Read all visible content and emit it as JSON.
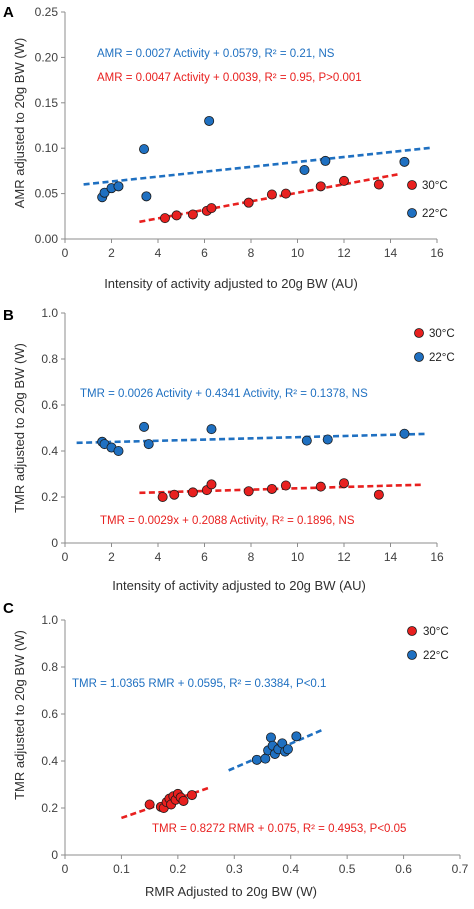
{
  "colors": {
    "red": "#e8201f",
    "blue": "#1f70c1",
    "axis": "#8c8c8c",
    "dot_stroke": "#1a1a1a"
  },
  "panels": [
    {
      "letter": "A",
      "ylabel": "AMR adjusted to 20g BW (W)",
      "xlabel": "Intensity of activity adjusted to 20g BW (AU)",
      "x_ticks": [
        "0",
        "2",
        "4",
        "6",
        "8",
        "10",
        "12",
        "14",
        "16"
      ],
      "y_ticks": [
        "0.00",
        "0.05",
        "0.10",
        "0.15",
        "0.20",
        "0.25"
      ],
      "equations": [
        {
          "text": "AMR = 0.0027 Activity + 0.0579,  R² = 0.21, NS",
          "series": "22C"
        },
        {
          "text": "AMR = 0.0047 Activity + 0.0039, R² = 0.95, P>0.001",
          "series": "30C"
        }
      ],
      "legend": [
        "30°C",
        "22°C"
      ]
    },
    {
      "letter": "B",
      "ylabel": "TMR adjusted to 20g BW (W)",
      "xlabel": "Intensity of activity adjusted to 20g BW (AU)",
      "x_ticks": [
        "0",
        "2",
        "4",
        "6",
        "8",
        "10",
        "12",
        "14",
        "16"
      ],
      "y_ticks": [
        "0",
        "0.2",
        "0.4",
        "0.6",
        "0.8",
        "1.0"
      ],
      "equations": [
        {
          "text": "TMR = 0.0026 Activity + 0.4341 Activity, R² = 0.1378, NS",
          "series": "22C"
        },
        {
          "text": "TMR = 0.0029x + 0.2088 Activity, R² = 0.1896, NS",
          "series": "30C"
        }
      ],
      "legend": [
        "30°C",
        "22°C"
      ]
    },
    {
      "letter": "C",
      "ylabel": "TMR adjusted to 20g BW (W)",
      "xlabel": "RMR Adjusted to 20g BW (W)",
      "x_ticks": [
        "0",
        "0.1",
        "0.2",
        "0.3",
        "0.4",
        "0.5",
        "0.6",
        "0.7"
      ],
      "y_ticks": [
        "0",
        "0.2",
        "0.4",
        "0.6",
        "0.8",
        "1.0"
      ],
      "equations": [
        {
          "text": "TMR = 1.0365 RMR + 0.0595, R² = 0.3384, P<0.1",
          "series": "22C"
        },
        {
          "text": "TMR = 0.8272 RMR + 0.075, R² = 0.4953, P<0.05",
          "series": "30C"
        }
      ],
      "legend": [
        "30°C",
        "22°C"
      ]
    }
  ],
  "chart_data": [
    {
      "type": "scatter",
      "xlim": [
        0,
        16
      ],
      "ylim": [
        0,
        0.25
      ],
      "series": [
        {
          "name": "30°C",
          "color": "#e8201f",
          "x": [
            4.3,
            4.8,
            5.5,
            6.1,
            6.3,
            7.9,
            8.9,
            9.5,
            11.0,
            12.0,
            13.5
          ],
          "y": [
            0.023,
            0.026,
            0.027,
            0.031,
            0.034,
            0.04,
            0.049,
            0.05,
            0.058,
            0.064,
            0.06
          ],
          "trend": {
            "slope": 0.0047,
            "intercept": 0.0039,
            "x_range": [
              3.2,
              14.3
            ]
          }
        },
        {
          "name": "22°C",
          "color": "#1f70c1",
          "x": [
            1.6,
            1.7,
            2.0,
            2.3,
            3.4,
            3.5,
            6.2,
            10.3,
            11.2,
            14.6
          ],
          "y": [
            0.046,
            0.051,
            0.056,
            0.058,
            0.099,
            0.047,
            0.13,
            0.076,
            0.086,
            0.085
          ],
          "trend": {
            "slope": 0.0027,
            "intercept": 0.0579,
            "x_range": [
              0.8,
              15.7
            ]
          }
        }
      ]
    },
    {
      "type": "scatter",
      "xlim": [
        0,
        16
      ],
      "ylim": [
        0,
        1.0
      ],
      "series": [
        {
          "name": "30°C",
          "color": "#e8201f",
          "x": [
            4.2,
            4.7,
            5.5,
            6.1,
            6.3,
            7.9,
            8.9,
            9.5,
            11.0,
            12.0,
            13.5
          ],
          "y": [
            0.2,
            0.21,
            0.22,
            0.23,
            0.255,
            0.225,
            0.235,
            0.25,
            0.245,
            0.26,
            0.21
          ],
          "trend": {
            "slope": 0.0029,
            "intercept": 0.2088,
            "x_range": [
              3.2,
              15.3
            ]
          }
        },
        {
          "name": "22°C",
          "color": "#1f70c1",
          "x": [
            1.6,
            1.7,
            2.0,
            2.3,
            3.4,
            3.6,
            6.3,
            10.4,
            11.3,
            14.6
          ],
          "y": [
            0.44,
            0.43,
            0.415,
            0.4,
            0.505,
            0.43,
            0.495,
            0.445,
            0.45,
            0.475
          ],
          "trend": {
            "slope": 0.0026,
            "intercept": 0.4341,
            "x_range": [
              0.5,
              15.5
            ]
          }
        }
      ]
    },
    {
      "type": "scatter",
      "xlim": [
        0,
        0.7
      ],
      "ylim": [
        0,
        1.0
      ],
      "series": [
        {
          "name": "30°C",
          "color": "#e8201f",
          "x": [
            0.15,
            0.17,
            0.175,
            0.18,
            0.185,
            0.188,
            0.192,
            0.196,
            0.2,
            0.205,
            0.21,
            0.225
          ],
          "y": [
            0.215,
            0.205,
            0.2,
            0.225,
            0.24,
            0.215,
            0.25,
            0.235,
            0.26,
            0.245,
            0.23,
            0.255
          ],
          "trend": {
            "slope": 0.8272,
            "intercept": 0.075,
            "x_range": [
              0.1,
              0.255
            ]
          }
        },
        {
          "name": "22°C",
          "color": "#1f70c1",
          "x": [
            0.34,
            0.355,
            0.36,
            0.365,
            0.368,
            0.372,
            0.378,
            0.385,
            0.39,
            0.395,
            0.41
          ],
          "y": [
            0.405,
            0.41,
            0.445,
            0.5,
            0.465,
            0.43,
            0.45,
            0.475,
            0.44,
            0.45,
            0.505
          ],
          "trend": {
            "slope": 1.0365,
            "intercept": 0.0595,
            "x_range": [
              0.29,
              0.46
            ]
          }
        }
      ]
    }
  ]
}
